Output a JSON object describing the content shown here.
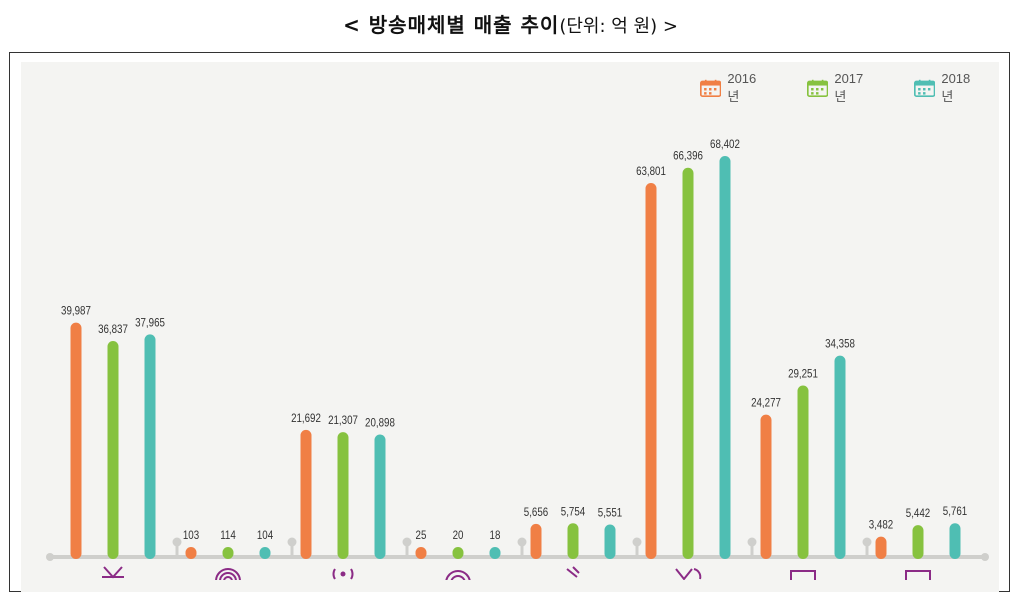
{
  "title": {
    "main": "< 방송매체별 매출 추이",
    "unit": "(단위: 억 원) >"
  },
  "legend": [
    {
      "label": "2016년",
      "color": "#f07f45"
    },
    {
      "label": "2017년",
      "color": "#86c23f"
    },
    {
      "label": "2018년",
      "color": "#4fbeb3"
    }
  ],
  "colors": {
    "axis": "#cfcfcc",
    "label": "#333333",
    "icon": "#8b2b86",
    "panel": "#f4f4f2"
  },
  "chart_data": {
    "type": "bar",
    "series": [
      {
        "name": "2016년",
        "values": [
          39987,
          103,
          21692,
          25,
          5656,
          63801,
          24277,
          3482
        ],
        "labels": [
          "39,987",
          "103",
          "21,692",
          "25",
          "5,656",
          "63,801",
          "24,277",
          "3,482"
        ]
      },
      {
        "name": "2017년",
        "values": [
          36837,
          114,
          21307,
          20,
          5754,
          66396,
          29251,
          5442
        ],
        "labels": [
          "36,837",
          "114",
          "21,307",
          "20",
          "5,754",
          "66,396",
          "29,251",
          "5,442"
        ]
      },
      {
        "name": "2018년",
        "values": [
          37965,
          104,
          20898,
          18,
          5551,
          68402,
          34358,
          5761
        ],
        "labels": [
          "37,965",
          "104",
          "20,898",
          "18",
          "5,551",
          "68,402",
          "34,358",
          "5,761"
        ]
      }
    ],
    "category_icons": [
      "tv-antenna-icon",
      "radio-wave-icon",
      "broadcast-icon",
      "satellite-wave-icon",
      "satellite-dish-icon",
      "cable-wave-icon",
      "monitor-icon",
      "screen-icon"
    ],
    "ylim": [
      0,
      68402
    ],
    "grid": false,
    "legend_position": "top-right"
  }
}
